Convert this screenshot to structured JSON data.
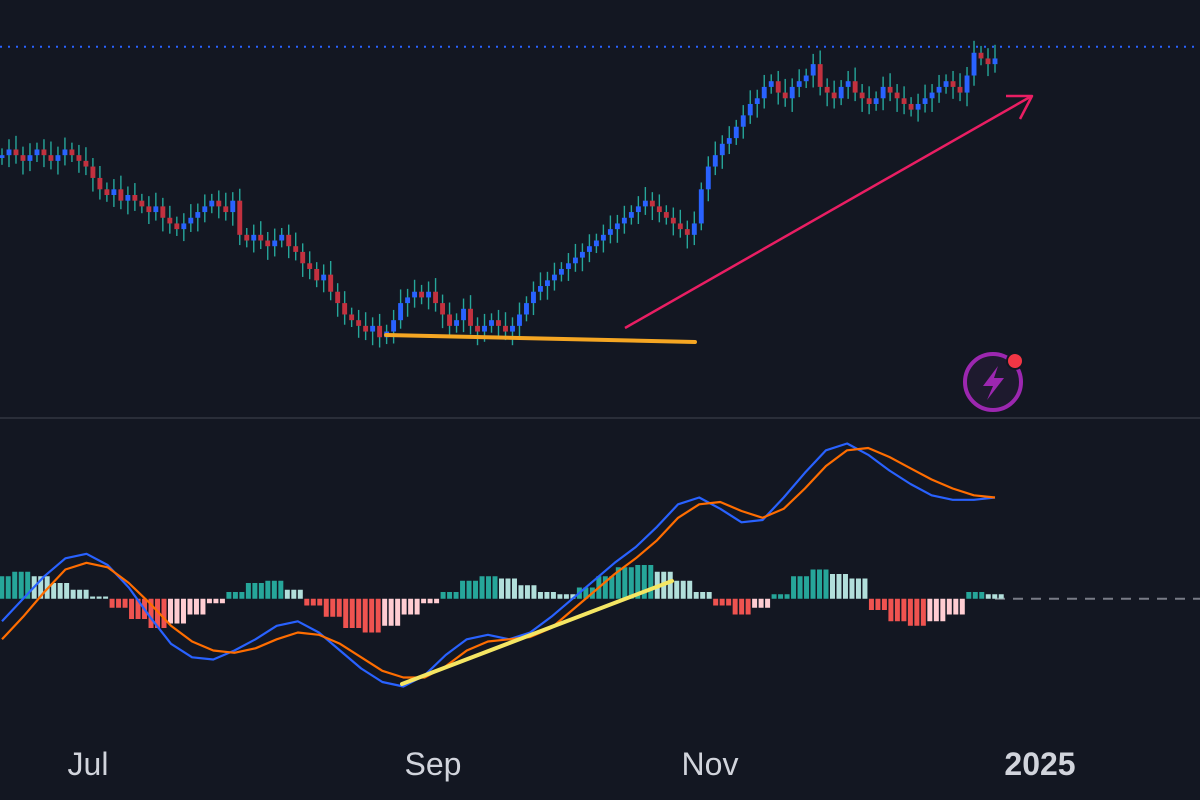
{
  "colors": {
    "background": "#131722",
    "candle_up": "#2962ff",
    "candle_down": "#c2313f",
    "wick": "#26a69a",
    "macd_line": "#2962ff",
    "signal_line": "#ff6d00",
    "hist_pos_strong": "#26a69a",
    "hist_pos_weak": "#b2dfdb",
    "hist_neg_strong": "#ef5350",
    "hist_neg_weak": "#ffcdd2",
    "support_line": "#f5a623",
    "trend_arrow": "#e91e63",
    "macd_trend": "#f5e663",
    "lightning_badge": "#9c27b0"
  },
  "chart_data": [
    {
      "type": "candlestick",
      "panel": "price",
      "grid": false,
      "horizontal_reference": {
        "style": "dotted",
        "color": "#2962ff"
      },
      "series": [
        {
          "name": "",
          "close": [
            96,
            97,
            96,
            95,
            96,
            97,
            96,
            95,
            96,
            97,
            96,
            95,
            94,
            92,
            90,
            89,
            90,
            88,
            89,
            88,
            87,
            86,
            87,
            85,
            84,
            83,
            84,
            85,
            86,
            87,
            88,
            87,
            86,
            88,
            82,
            81,
            82,
            81,
            80,
            81,
            82,
            80,
            79,
            77,
            76,
            74,
            75,
            72,
            70,
            68,
            67,
            66,
            65,
            66,
            64,
            65,
            67,
            70,
            71,
            72,
            71,
            72,
            70,
            68,
            66,
            67,
            69,
            66,
            65,
            66,
            67,
            66,
            65,
            66,
            68,
            70,
            72,
            73,
            74,
            75,
            76,
            77,
            78,
            79,
            80,
            81,
            82,
            83,
            84,
            85,
            86,
            87,
            88,
            87,
            86,
            85,
            84,
            83,
            82,
            84,
            90,
            94,
            96,
            98,
            99,
            101,
            103,
            105,
            106,
            108,
            109,
            107,
            106,
            108,
            109,
            110,
            112,
            108,
            107,
            106,
            108,
            109,
            107,
            106,
            105,
            106,
            108,
            107,
            106,
            105,
            104,
            105,
            106,
            107,
            108,
            109,
            108,
            107,
            110,
            114,
            113,
            112,
            113
          ]
        }
      ]
    },
    {
      "type": "line",
      "panel": "indicator",
      "grid": false,
      "zero_line": {
        "style": "dashed"
      },
      "series": [
        {
          "name": "",
          "values": [
            -1.0,
            0.0,
            1.0,
            1.8,
            2.0,
            1.5,
            0.5,
            -0.8,
            -2.0,
            -2.6,
            -2.7,
            -2.3,
            -1.8,
            -1.2,
            -1.0,
            -1.5,
            -2.3,
            -3.1,
            -3.7,
            -3.9,
            -3.4,
            -2.5,
            -1.8,
            -1.6,
            -1.8,
            -1.5,
            -0.8,
            0.0,
            0.8,
            1.6,
            2.3,
            3.2,
            4.2,
            4.5,
            4.0,
            3.4,
            3.5,
            4.5,
            5.6,
            6.6,
            6.9,
            6.4,
            5.7,
            5.1,
            4.6,
            4.4,
            4.4,
            4.5
          ]
        },
        {
          "name": "",
          "values": [
            -1.8,
            -0.8,
            0.3,
            1.3,
            1.6,
            1.4,
            0.7,
            -0.2,
            -1.2,
            -1.9,
            -2.3,
            -2.4,
            -2.2,
            -1.8,
            -1.5,
            -1.6,
            -2.0,
            -2.6,
            -3.2,
            -3.5,
            -3.5,
            -3.0,
            -2.3,
            -1.9,
            -1.8,
            -1.7,
            -1.3,
            -0.5,
            0.3,
            1.1,
            1.8,
            2.6,
            3.6,
            4.2,
            4.3,
            3.9,
            3.6,
            4.0,
            4.9,
            5.9,
            6.6,
            6.7,
            6.3,
            5.8,
            5.3,
            4.9,
            4.6,
            4.5
          ]
        }
      ]
    },
    {
      "type": "bar",
      "panel": "indicator",
      "series": [
        {
          "name": "",
          "values": [
            1.0,
            1.2,
            1.0,
            0.7,
            0.4,
            0.1,
            -0.4,
            -0.9,
            -1.3,
            -1.1,
            -0.7,
            -0.2,
            0.3,
            0.7,
            0.8,
            0.4,
            -0.3,
            -0.8,
            -1.3,
            -1.5,
            -1.2,
            -0.7,
            -0.2,
            0.3,
            0.8,
            1.0,
            0.9,
            0.6,
            0.3,
            0.2,
            0.5,
            1.0,
            1.4,
            1.5,
            1.2,
            0.8,
            0.3,
            -0.3,
            -0.7,
            -0.4,
            0.2,
            1.0,
            1.3,
            1.1,
            0.9,
            -0.5,
            -1.0,
            -1.2,
            -1.0,
            -0.7,
            0.3,
            0.2
          ]
        }
      ]
    }
  ],
  "x_axis": {
    "tick_labels": [
      "Jul",
      "Sep",
      "Nov",
      "2025"
    ]
  }
}
